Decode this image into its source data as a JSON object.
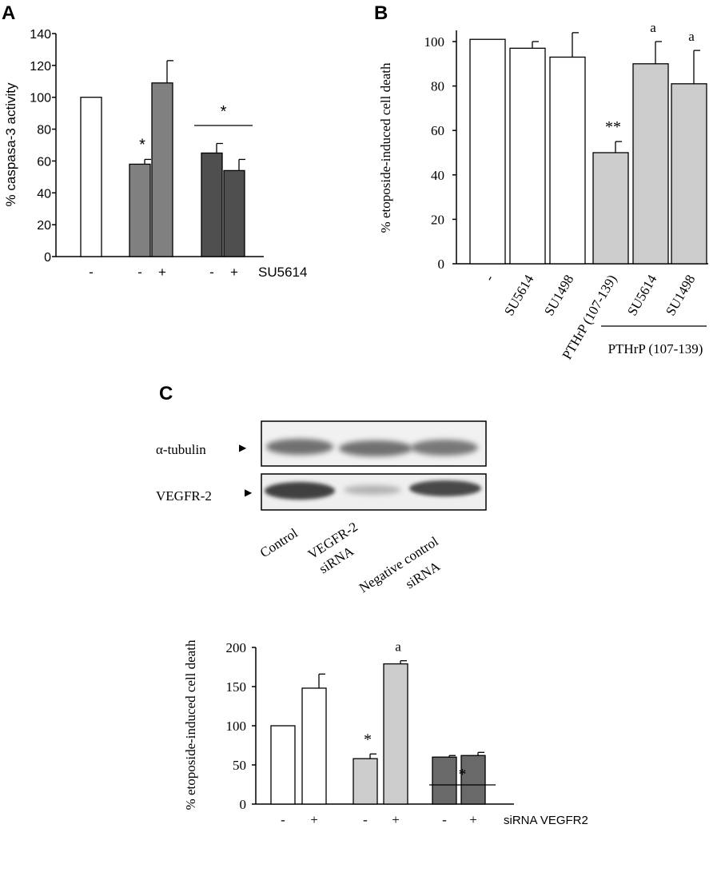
{
  "colors": {
    "white": "#ffffff",
    "gray_mid": "#808080",
    "gray_light": "#cccccc",
    "gray_dark": "#4f4f4f",
    "gray_dark2": "#696969",
    "axis": "#000000"
  },
  "panels": {
    "a": "A",
    "b": "B",
    "c": "C"
  },
  "chart_data": [
    {
      "id": "A",
      "type": "bar",
      "ylabel": "% caspasa-3 activity",
      "ylim": [
        0,
        140
      ],
      "yticks": [
        0,
        20,
        40,
        60,
        80,
        100,
        120,
        140
      ],
      "treatment_label": "SU5614",
      "bars": [
        {
          "value": 100,
          "error": 0,
          "color": "white",
          "tick": "-",
          "group": 0
        },
        {
          "value": 58,
          "error": 3,
          "color": "gray_mid",
          "tick": "-",
          "group": 1,
          "annotation": "*"
        },
        {
          "value": 109,
          "error": 14,
          "color": "gray_mid",
          "tick": "+",
          "group": 1
        },
        {
          "value": 65,
          "error": 6,
          "color": "gray_dark",
          "tick": "-",
          "group": 2
        },
        {
          "value": 54,
          "error": 7,
          "color": "gray_dark",
          "tick": "+",
          "group": 2
        }
      ],
      "group_annotations": [
        {
          "from": 3,
          "to": 4,
          "label": "*"
        }
      ]
    },
    {
      "id": "B",
      "type": "bar",
      "ylabel": "% etoposide-induced cell death",
      "ylim": [
        0,
        100
      ],
      "yticks": [
        0,
        20,
        40,
        60,
        80,
        100
      ],
      "bars": [
        {
          "value": 101,
          "error": 0,
          "color": "white",
          "tick": "-"
        },
        {
          "value": 97,
          "error": 3,
          "color": "white",
          "tick": "SU5614"
        },
        {
          "value": 93,
          "error": 11,
          "color": "white",
          "tick": "SU1498"
        },
        {
          "value": 50,
          "error": 5,
          "color": "gray_light",
          "tick": "PTHrP  (107-139)",
          "annotation": "**"
        },
        {
          "value": 90,
          "error": 10,
          "color": "gray_light",
          "tick": "SU5614",
          "annotation": "a"
        },
        {
          "value": 81,
          "error": 15,
          "color": "gray_light",
          "tick": "SU1498",
          "annotation": "a"
        }
      ],
      "group_label": {
        "from": 4,
        "to": 5,
        "label": "PTHrP (107-139)"
      }
    },
    {
      "id": "C-bottom",
      "type": "bar",
      "ylabel": "% etoposide-induced cell death",
      "ylim": [
        0,
        200
      ],
      "yticks": [
        0,
        50,
        100,
        150,
        200
      ],
      "treatment_label": "siRNA VEGFR2",
      "bars": [
        {
          "value": 100,
          "error": 0,
          "color": "white",
          "tick": "-",
          "group": 0
        },
        {
          "value": 148,
          "error": 18,
          "color": "white",
          "tick": "+",
          "group": 0
        },
        {
          "value": 58,
          "error": 6,
          "color": "gray_light",
          "tick": "-",
          "group": 1,
          "annotation": "*"
        },
        {
          "value": 179,
          "error": 4,
          "color": "gray_light",
          "tick": "+",
          "group": 1,
          "annotation": "a"
        },
        {
          "value": 60,
          "error": 2,
          "color": "gray_dark2",
          "tick": "-",
          "group": 2
        },
        {
          "value": 62,
          "error": 4,
          "color": "gray_dark2",
          "tick": "+",
          "group": 2
        }
      ],
      "group_annotations": [
        {
          "from": 4,
          "to": 5,
          "label": "*"
        }
      ]
    }
  ],
  "western_blot": {
    "rows": [
      {
        "label": "α-tubulin",
        "arrow": "▶"
      },
      {
        "label": "VEGFR-2",
        "arrow": "▶"
      }
    ],
    "lanes": [
      {
        "label_lines": [
          "Control"
        ]
      },
      {
        "label_lines": [
          "VEGFR-2",
          "siRNA"
        ]
      },
      {
        "label_lines": [
          "Negative control",
          "siRNA"
        ]
      }
    ]
  }
}
